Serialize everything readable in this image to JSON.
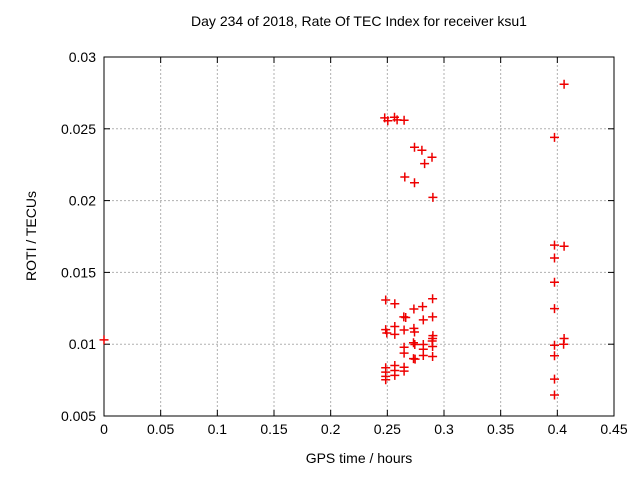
{
  "chart_data": {
    "type": "scatter",
    "title": "Day 234 of 2018, Rate Of TEC Index for receiver ksu1",
    "xlabel": "GPS time / hours",
    "ylabel": "ROTI / TECUs",
    "xlim": [
      0,
      0.45
    ],
    "ylim": [
      0.005,
      0.03
    ],
    "xticks": [
      0,
      0.05,
      0.1,
      0.15,
      0.2,
      0.25,
      0.3,
      0.35,
      0.4,
      0.45
    ],
    "xtick_labels": [
      "0",
      "0.05",
      "0.1",
      "0.15",
      "0.2",
      "0.25",
      "0.3",
      "0.35",
      "0.4",
      "0.45"
    ],
    "yticks": [
      0.005,
      0.01,
      0.015,
      0.02,
      0.025,
      0.03
    ],
    "ytick_labels": [
      "0.005",
      "0.01",
      "0.015",
      "0.02",
      "0.025",
      "0.03"
    ],
    "grid": true,
    "legend": null,
    "marker": "plus",
    "marker_color": "#ee0000",
    "series": [
      {
        "name": "ROTI",
        "points": [
          [
            0.0,
            0.0103
          ],
          [
            0.2477,
            0.02576
          ],
          [
            0.2504,
            0.02556
          ],
          [
            0.2563,
            0.02581
          ],
          [
            0.2586,
            0.02562
          ],
          [
            0.2648,
            0.0256
          ],
          [
            0.274,
            0.02372
          ],
          [
            0.2805,
            0.0235
          ],
          [
            0.2829,
            0.02258
          ],
          [
            0.2894,
            0.02302
          ],
          [
            0.2654,
            0.02164
          ],
          [
            0.274,
            0.02124
          ],
          [
            0.2902,
            0.02022
          ],
          [
            0.2486,
            0.01308
          ],
          [
            0.2566,
            0.01281
          ],
          [
            0.2899,
            0.01317
          ],
          [
            0.2734,
            0.01245
          ],
          [
            0.2811,
            0.01262
          ],
          [
            0.2645,
            0.0119
          ],
          [
            0.2662,
            0.01186
          ],
          [
            0.2817,
            0.01169
          ],
          [
            0.2899,
            0.0119
          ],
          [
            0.2566,
            0.01123
          ],
          [
            0.2486,
            0.01102
          ],
          [
            0.2495,
            0.01078
          ],
          [
            0.2648,
            0.01099
          ],
          [
            0.2734,
            0.0111
          ],
          [
            0.274,
            0.01085
          ],
          [
            0.2566,
            0.01068
          ],
          [
            0.2902,
            0.0106
          ],
          [
            0.2899,
            0.0104
          ],
          [
            0.2896,
            0.01022
          ],
          [
            0.2731,
            0.0101
          ],
          [
            0.2742,
            0.00998
          ],
          [
            0.2817,
            0.00998
          ],
          [
            0.2648,
            0.00979
          ],
          [
            0.2817,
            0.00965
          ],
          [
            0.2899,
            0.00984
          ],
          [
            0.2648,
            0.00938
          ],
          [
            0.2731,
            0.009
          ],
          [
            0.2745,
            0.00896
          ],
          [
            0.2817,
            0.00921
          ],
          [
            0.2899,
            0.00914
          ],
          [
            0.2486,
            0.00836
          ],
          [
            0.2566,
            0.00852
          ],
          [
            0.2648,
            0.0084
          ],
          [
            0.2486,
            0.00806
          ],
          [
            0.2566,
            0.00817
          ],
          [
            0.2648,
            0.00813
          ],
          [
            0.2486,
            0.00776
          ],
          [
            0.2566,
            0.00783
          ],
          [
            0.2486,
            0.00753
          ],
          [
            0.406,
            0.0281
          ],
          [
            0.3975,
            0.0244
          ],
          [
            0.3975,
            0.0169
          ],
          [
            0.406,
            0.01682
          ],
          [
            0.3975,
            0.016
          ],
          [
            0.3975,
            0.01432
          ],
          [
            0.3975,
            0.01248
          ],
          [
            0.406,
            0.0104
          ],
          [
            0.4055,
            0.01
          ],
          [
            0.3975,
            0.00993
          ],
          [
            0.3975,
            0.0092
          ],
          [
            0.3975,
            0.00757
          ],
          [
            0.3975,
            0.00646
          ]
        ]
      }
    ]
  }
}
